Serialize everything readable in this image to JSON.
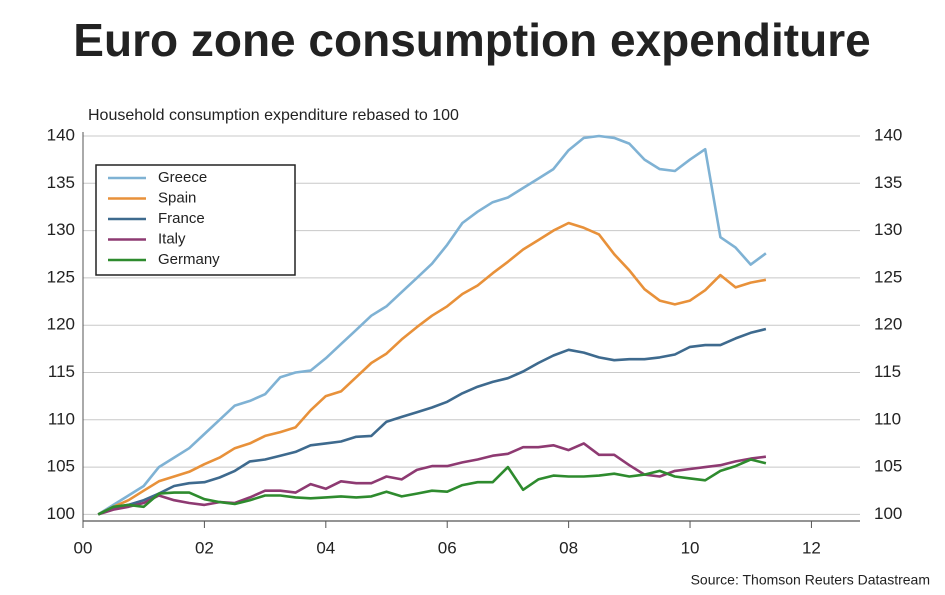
{
  "chart_data": {
    "type": "line",
    "title": "Euro zone consumption expenditure",
    "subtitle": "Household consumption expenditure rebased to 100",
    "source": "Source: Thomson Reuters Datastream",
    "x": [
      0.25,
      0.5,
      0.75,
      1,
      1.25,
      1.5,
      1.75,
      2,
      2.25,
      2.5,
      2.75,
      3,
      3.25,
      3.5,
      3.75,
      4,
      4.25,
      4.5,
      4.75,
      5,
      5.25,
      5.5,
      5.75,
      6,
      6.25,
      6.5,
      6.75,
      7,
      7.25,
      7.5,
      7.75,
      8,
      8.25,
      8.5,
      8.75,
      9,
      9.25,
      9.5,
      9.75,
      10,
      10.25,
      10.5,
      10.75,
      11,
      11.25
    ],
    "series": [
      {
        "name": "Greece",
        "color": "#7fb2d4",
        "values": [
          100,
          101,
          102,
          103,
          105,
          106,
          107,
          108.5,
          110,
          111.5,
          112,
          112.7,
          114.5,
          115,
          115.2,
          116.5,
          118,
          119.5,
          121,
          122,
          123.5,
          125,
          126.5,
          128.5,
          130.8,
          132,
          133,
          133.5,
          134.5,
          135.5,
          136.5,
          138.5,
          139.8,
          140,
          139.8,
          139.2,
          137.5,
          136.5,
          136.3,
          137.5,
          138.6,
          129.3,
          128.2,
          126.4,
          127.6
        ]
      },
      {
        "name": "Spain",
        "color": "#e8913a",
        "values": [
          100,
          100.8,
          101.5,
          102.5,
          103.5,
          104,
          104.5,
          105.3,
          106,
          107,
          107.5,
          108.3,
          108.7,
          109.2,
          111,
          112.5,
          113,
          114.5,
          116,
          117,
          118.5,
          119.8,
          121,
          122,
          123.3,
          124.2,
          125.5,
          126.7,
          128,
          129,
          130,
          130.8,
          130.3,
          129.6,
          127.5,
          125.8,
          123.8,
          122.6,
          122.2,
          122.6,
          123.7,
          125.3,
          124,
          124.5,
          124.8
        ]
      },
      {
        "name": "France",
        "color": "#3e6a8e",
        "values": [
          100,
          100.7,
          101,
          101.5,
          102.2,
          103,
          103.3,
          103.4,
          103.9,
          104.6,
          105.6,
          105.8,
          106.2,
          106.6,
          107.3,
          107.5,
          107.7,
          108.2,
          108.3,
          109.8,
          110.3,
          110.8,
          111.3,
          111.9,
          112.8,
          113.5,
          114,
          114.4,
          115.1,
          116,
          116.8,
          117.4,
          117.1,
          116.6,
          116.3,
          116.4,
          116.4,
          116.6,
          116.9,
          117.7,
          117.9,
          117.9,
          118.6,
          119.2,
          119.6
        ]
      },
      {
        "name": "Italy",
        "color": "#8e3a72",
        "values": [
          100,
          100.5,
          100.8,
          101.2,
          102,
          101.5,
          101.2,
          101,
          101.3,
          101.2,
          101.8,
          102.5,
          102.5,
          102.3,
          103.2,
          102.7,
          103.5,
          103.3,
          103.3,
          104,
          103.7,
          104.7,
          105.1,
          105.1,
          105.5,
          105.8,
          106.2,
          106.4,
          107.1,
          107.1,
          107.3,
          106.8,
          107.5,
          106.3,
          106.3,
          105.2,
          104.2,
          104,
          104.6,
          104.8,
          105,
          105.2,
          105.6,
          105.9,
          106.1
        ]
      },
      {
        "name": "Germany",
        "color": "#2e8b2e",
        "values": [
          100,
          100.8,
          101,
          100.8,
          102.2,
          102.3,
          102.3,
          101.6,
          101.3,
          101.1,
          101.5,
          102,
          102,
          101.8,
          101.7,
          101.8,
          101.9,
          101.8,
          101.9,
          102.4,
          101.9,
          102.2,
          102.5,
          102.4,
          103.1,
          103.4,
          103.4,
          105,
          102.6,
          103.7,
          104.1,
          104,
          104,
          104.1,
          104.3,
          104,
          104.2,
          104.6,
          104,
          103.8,
          103.6,
          104.6,
          105.1,
          105.8,
          105.4
        ]
      }
    ],
    "xlim": [
      0,
      12.8
    ],
    "xticks": [
      {
        "value": 0,
        "label": "00"
      },
      {
        "value": 2,
        "label": "02"
      },
      {
        "value": 4,
        "label": "04"
      },
      {
        "value": 6,
        "label": "06"
      },
      {
        "value": 8,
        "label": "08"
      },
      {
        "value": 10,
        "label": "10"
      },
      {
        "value": 12,
        "label": "12"
      }
    ],
    "ylim": [
      99.3,
      140
    ],
    "yticks": [
      100,
      105,
      110,
      115,
      120,
      125,
      130,
      135,
      140
    ],
    "grid": true,
    "legend": "upper-left"
  }
}
